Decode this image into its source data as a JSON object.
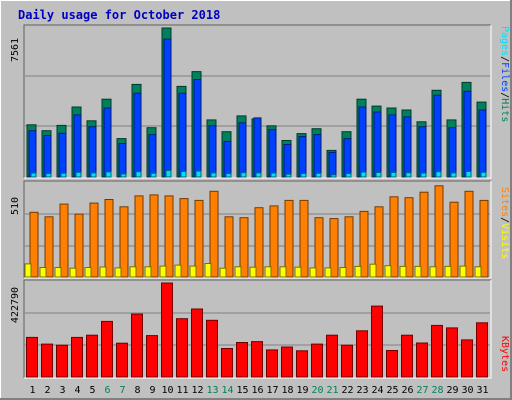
{
  "colors": {
    "background": "#c0c0c0",
    "hits": "#00805c",
    "files": "#0040ff",
    "pages": "#00e0ff",
    "visits": "#ff8000",
    "sites": "#ffff00",
    "kbytes": "#ff0000",
    "title": "#0000c0",
    "weekend_label": "#00805c",
    "weekday_label": "#000000"
  },
  "chart_data": {
    "type": "bar",
    "title": "Daily usage for October 2018",
    "categories": [
      "1",
      "2",
      "3",
      "4",
      "5",
      "6",
      "7",
      "8",
      "9",
      "10",
      "11",
      "12",
      "13",
      "14",
      "15",
      "16",
      "17",
      "18",
      "19",
      "20",
      "21",
      "22",
      "23",
      "24",
      "25",
      "26",
      "27",
      "28",
      "29",
      "30",
      "31"
    ],
    "weekend_days": [
      "6",
      "7",
      "13",
      "14",
      "20",
      "21",
      "27",
      "28"
    ],
    "panels": [
      {
        "name": "top",
        "max_label": "7561",
        "ymax": 7561,
        "legend": [
          {
            "text": "Pages",
            "color": "#00e0ff"
          },
          {
            "text": "/",
            "color": "#000000"
          },
          {
            "text": "Files",
            "color": "#0040ff"
          },
          {
            "text": "/",
            "color": "#000000"
          },
          {
            "text": "Hits",
            "color": "#00805c"
          }
        ],
        "series": [
          {
            "name": "Hits",
            "values": [
              2650,
              2350,
              2620,
              3550,
              2850,
              3950,
              1950,
              4700,
              2500,
              7561,
              4600,
              5350,
              2900,
              2300,
              3100,
              2950,
              2600,
              1850,
              2200,
              2450,
              1350,
              2300,
              3950,
              3600,
              3500,
              3400,
              2800,
              4400,
              2900,
              4800,
              3800
            ]
          },
          {
            "name": "Files",
            "values": [
              2350,
              2100,
              2220,
              3150,
              2550,
              3500,
              1700,
              4250,
              2150,
              7000,
              4250,
              4950,
              2600,
              1800,
              2750,
              3000,
              2400,
              1650,
              2050,
              2150,
              1250,
              1950,
              3550,
              3300,
              3150,
              3050,
              2550,
              4150,
              2500,
              4350,
              3400
            ]
          },
          {
            "name": "Pages",
            "values": [
              200,
              170,
              190,
              240,
              210,
              260,
              150,
              270,
              190,
              330,
              280,
              300,
              210,
              170,
              220,
              210,
              200,
              140,
              170,
              190,
              110,
              170,
              250,
              230,
              230,
              220,
              200,
              270,
              210,
              280,
              240
            ]
          }
        ]
      },
      {
        "name": "middle",
        "max_label": "510",
        "ymax": 510,
        "legend": [
          {
            "text": "Sites",
            "color": "#ff8000"
          },
          {
            "text": "/",
            "color": "#000000"
          },
          {
            "text": "Visits",
            "color": "#ffff00"
          }
        ],
        "series": [
          {
            "name": "Visits",
            "values": [
              355,
              330,
              400,
              345,
              405,
              425,
              385,
              445,
              450,
              445,
              430,
              420,
              470,
              330,
              325,
              380,
              390,
              420,
              420,
              325,
              320,
              330,
              360,
              385,
              440,
              435,
              465,
              500,
              410,
              470,
              420
            ]
          },
          {
            "name": "Sites",
            "values": [
              72,
              52,
              52,
              48,
              52,
              55,
              50,
              56,
              56,
              60,
              65,
              60,
              74,
              48,
              56,
              54,
              56,
              56,
              54,
              50,
              50,
              52,
              58,
              70,
              62,
              58,
              58,
              56,
              58,
              60,
              56
            ]
          }
        ]
      },
      {
        "name": "bottom",
        "max_label": "422790",
        "ymax": 422790,
        "legend": [
          {
            "text": "KBytes",
            "color": "#ff0000"
          }
        ],
        "series": [
          {
            "name": "KBytes",
            "values": [
              178000,
              148000,
              143000,
              178000,
              188000,
              250000,
              152000,
              283000,
              186000,
              422790,
              262000,
              306000,
              255000,
              128000,
              155000,
              159000,
              122000,
              135000,
              118000,
              148000,
              188000,
              143000,
              208000,
              319000,
              119000,
              188000,
              153000,
              232000,
              221000,
              167000,
              244000
            ]
          }
        ]
      }
    ]
  }
}
